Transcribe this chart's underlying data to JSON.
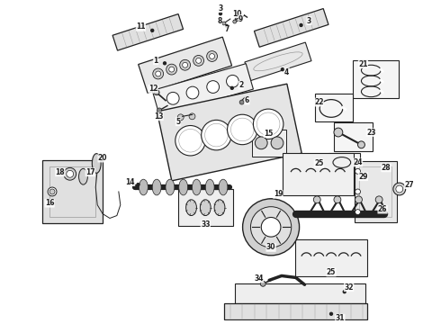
{
  "bg_color": "#ffffff",
  "lc": "#999999",
  "dc": "#222222",
  "fig_width": 4.9,
  "fig_height": 3.6,
  "dpi": 100
}
